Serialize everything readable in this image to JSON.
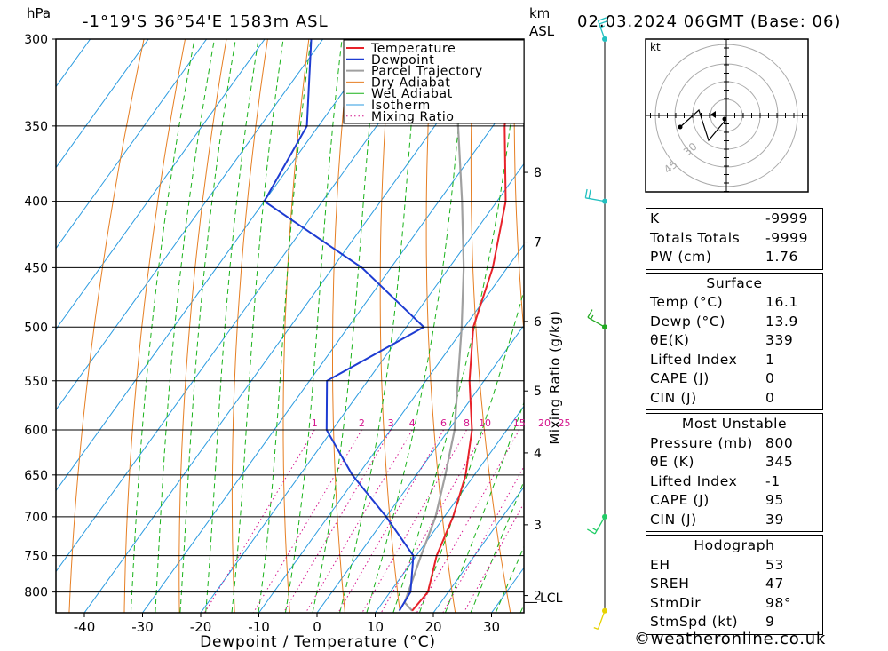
{
  "header": {
    "location": "-1°19'S  36°54'E  1583m  ASL",
    "datetime": "02.03.2024  06GMT  (Base: 06)",
    "unit_hpa": "hPa",
    "unit_km": "km",
    "unit_asl": "ASL"
  },
  "footer": {
    "copyright": "©weatheronline.co.uk"
  },
  "chart_data": {
    "type": "skew-t",
    "xlabel": "Dewpoint / Temperature (°C)",
    "y2label": "Mixing Ratio (g/kg)",
    "x_ticks": [
      -40,
      -30,
      -20,
      -10,
      0,
      10,
      20,
      30
    ],
    "pressure_levels": [
      300,
      350,
      400,
      450,
      500,
      550,
      600,
      650,
      700,
      750,
      800
    ],
    "km_labels": [
      {
        "label": "8",
        "p": 380
      },
      {
        "label": "7",
        "p": 430
      },
      {
        "label": "6",
        "p": 495
      },
      {
        "label": "5",
        "p": 560
      },
      {
        "label": "4",
        "p": 625
      },
      {
        "label": "3",
        "p": 710
      },
      {
        "label": "2",
        "p": 805
      }
    ],
    "lcl_label": "LCL",
    "lcl_pressure": 815,
    "mixing_ratio_labels": [
      "1",
      "2",
      "3",
      "4",
      "6",
      "8",
      "10",
      "15",
      "20",
      "25"
    ],
    "mixing_ratio_values": [
      1,
      2,
      3,
      4,
      6,
      8,
      10,
      15,
      20,
      25
    ],
    "legend": [
      "Temperature",
      "Dewpoint",
      "Parcel Trajectory",
      "Dry Adiabat",
      "Wet Adiabat",
      "Isotherm",
      "Mixing Ratio"
    ],
    "colors": {
      "temperature": "#e8222a",
      "dewpoint": "#1e3cd2",
      "parcel": "#a0a0a0",
      "dry_adiabat": "#e67e22",
      "wet_adiabat": "#19b219",
      "isotherm": "#2b9be0",
      "mixing_ratio": "#d4148c"
    },
    "temperature": [
      {
        "p": 827,
        "t": 16.1
      },
      {
        "p": 800,
        "t": 16.5
      },
      {
        "p": 750,
        "t": 13.5
      },
      {
        "p": 700,
        "t": 11.5
      },
      {
        "p": 650,
        "t": 8.5
      },
      {
        "p": 600,
        "t": 4.0
      },
      {
        "p": 550,
        "t": -2.5
      },
      {
        "p": 500,
        "t": -8.5
      },
      {
        "p": 450,
        "t": -12.5
      },
      {
        "p": 400,
        "t": -18.5
      },
      {
        "p": 350,
        "t": -28.0
      },
      {
        "p": 300,
        "t": -37.0
      }
    ],
    "dewpoint": [
      {
        "p": 827,
        "t": 13.9
      },
      {
        "p": 800,
        "t": 13.5
      },
      {
        "p": 750,
        "t": 9.5
      },
      {
        "p": 700,
        "t": 0.0
      },
      {
        "p": 650,
        "t": -11.0
      },
      {
        "p": 600,
        "t": -21.0
      },
      {
        "p": 550,
        "t": -27.0
      },
      {
        "p": 500,
        "t": -17.0
      },
      {
        "p": 450,
        "t": -35.0
      },
      {
        "p": 400,
        "t": -60.0
      },
      {
        "p": 350,
        "t": -62.0
      },
      {
        "p": 300,
        "t": -72.0
      }
    ],
    "parcel": [
      {
        "p": 827,
        "t": 16.1
      },
      {
        "p": 815,
        "t": 13.8
      },
      {
        "p": 750,
        "t": 10.8
      },
      {
        "p": 700,
        "t": 8.5
      },
      {
        "p": 650,
        "t": 5.0
      },
      {
        "p": 600,
        "t": 1.0
      },
      {
        "p": 550,
        "t": -4.5
      },
      {
        "p": 500,
        "t": -10.5
      },
      {
        "p": 450,
        "t": -17.5
      },
      {
        "p": 400,
        "t": -26.0
      },
      {
        "p": 350,
        "t": -36.0
      },
      {
        "p": 300,
        "t": -48.0
      }
    ],
    "wind_barbs": [
      {
        "p": 300,
        "dir": 340,
        "spd": 25
      },
      {
        "p": 400,
        "dir": 280,
        "spd": 20
      },
      {
        "p": 500,
        "dir": 300,
        "spd": 15
      },
      {
        "p": 700,
        "dir": 210,
        "spd": 15
      },
      {
        "p": 827,
        "dir": 200,
        "spd": 5
      }
    ]
  },
  "hodograph": {
    "unit": "kt",
    "ring_labels": [
      "30",
      "45"
    ]
  },
  "indices": {
    "general": [
      {
        "label": "K",
        "value": "-9999"
      },
      {
        "label": "Totals Totals",
        "value": "-9999"
      },
      {
        "label": "PW (cm)",
        "value": "1.76"
      }
    ],
    "surface": {
      "title": "Surface",
      "rows": [
        {
          "label": "Temp (°C)",
          "value": "16.1"
        },
        {
          "label": "Dewp (°C)",
          "value": "13.9"
        },
        {
          "label": "θE(K)",
          "value": "339"
        },
        {
          "label": "Lifted Index",
          "value": "1"
        },
        {
          "label": "CAPE (J)",
          "value": "0"
        },
        {
          "label": "CIN (J)",
          "value": "0"
        }
      ]
    },
    "most_unstable": {
      "title": "Most Unstable",
      "rows": [
        {
          "label": "Pressure (mb)",
          "value": "800"
        },
        {
          "label": "θE (K)",
          "value": "345"
        },
        {
          "label": "Lifted Index",
          "value": "-1"
        },
        {
          "label": "CAPE (J)",
          "value": "95"
        },
        {
          "label": "CIN (J)",
          "value": "39"
        }
      ]
    },
    "hodograph": {
      "title": "Hodograph",
      "rows": [
        {
          "label": "EH",
          "value": "53"
        },
        {
          "label": "SREH",
          "value": "47"
        },
        {
          "label": "StmDir",
          "value": "98°"
        },
        {
          "label": "StmSpd (kt)",
          "value": "9"
        }
      ]
    }
  }
}
